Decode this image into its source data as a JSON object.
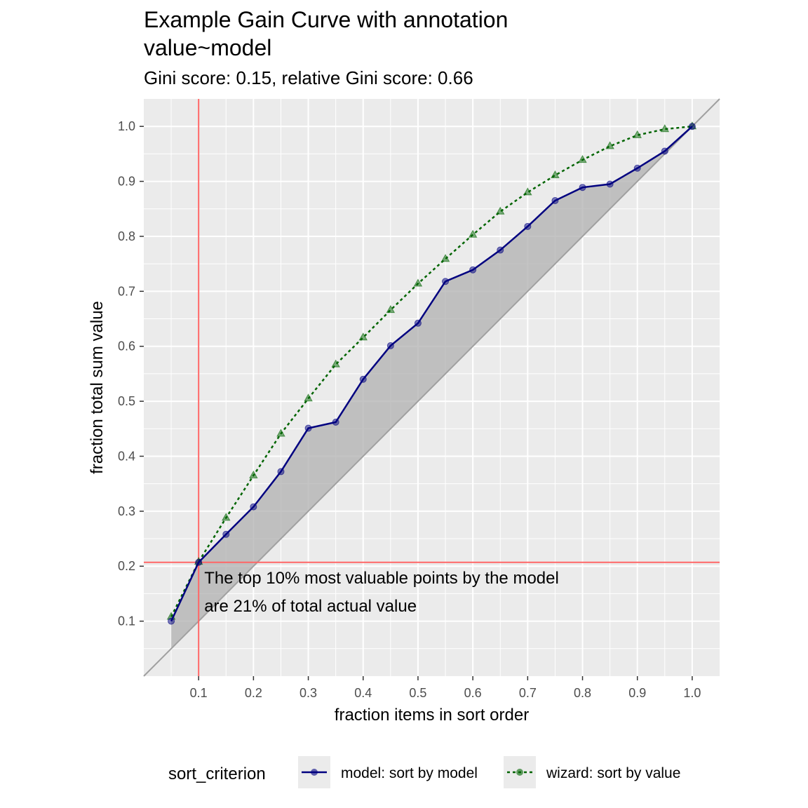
{
  "chart_data": {
    "type": "line",
    "title": "Example Gain Curve with annotation",
    "title_line2": "value~model",
    "subtitle": "Gini score: 0.15, relative Gini score: 0.66",
    "xlabel": "fraction items in sort order",
    "ylabel": "fraction total sum value",
    "xlim": [
      0.0,
      1.05
    ],
    "ylim": [
      -0.0,
      1.05
    ],
    "x_ticks": [
      "0.1",
      "0.2",
      "0.3",
      "0.4",
      "0.5",
      "0.6",
      "0.7",
      "0.8",
      "0.9",
      "1.0"
    ],
    "y_ticks": [
      "0.1",
      "0.2",
      "0.3",
      "0.4",
      "0.5",
      "0.6",
      "0.7",
      "0.8",
      "0.9",
      "1.0"
    ],
    "grid": true,
    "legend_position": "bottom",
    "legend_title": "sort_criterion",
    "x": [
      0.05,
      0.1,
      0.15,
      0.2,
      0.25,
      0.3,
      0.35,
      0.4,
      0.45,
      0.5,
      0.55,
      0.6,
      0.65,
      0.7,
      0.75,
      0.8,
      0.85,
      0.9,
      0.95,
      1.0
    ],
    "series": [
      {
        "name": "model: sort by model",
        "color": "#000080",
        "line_style": "solid",
        "marker": "circle",
        "values": [
          0.1,
          0.207,
          0.258,
          0.308,
          0.372,
          0.451,
          0.462,
          0.54,
          0.601,
          0.642,
          0.718,
          0.739,
          0.775,
          0.818,
          0.865,
          0.889,
          0.895,
          0.924,
          0.955,
          1.0
        ]
      },
      {
        "name": "wizard: sort by value",
        "color": "#006400",
        "line_style": "dotted",
        "marker": "triangle",
        "values": [
          0.108,
          0.208,
          0.288,
          0.365,
          0.441,
          0.505,
          0.567,
          0.616,
          0.666,
          0.714,
          0.759,
          0.803,
          0.845,
          0.88,
          0.911,
          0.939,
          0.964,
          0.984,
          0.995,
          1.0
        ]
      }
    ],
    "reference_line": {
      "type": "diagonal",
      "color": "#a0a0a0"
    },
    "shaded_region": {
      "between": [
        "diagonal",
        "model: sort by model"
      ],
      "color": "#b0b0b0"
    },
    "annotation": {
      "x": 0.1,
      "y": 0.207,
      "line_color": "#ff6666",
      "lines": [
        "The top 10% most valuable points by the model",
        "are 21% of total actual value"
      ]
    },
    "colors": {
      "panel_background": "#ebebeb",
      "grid": "#ffffff",
      "text": "#000000",
      "tick_text": "#4d4d4d"
    }
  }
}
